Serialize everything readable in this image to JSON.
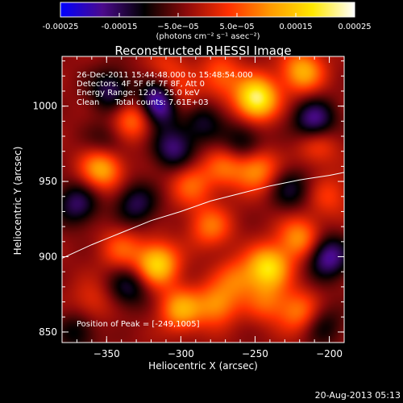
{
  "chart_data": {
    "type": "heatmap",
    "title": "Reconstructed RHESSI Image",
    "xlabel": "Heliocentric X (arcsec)",
    "ylabel": "Heliocentric Y (arcsec)",
    "xlim": [
      -380,
      -190
    ],
    "ylim": [
      843,
      1033
    ],
    "x_ticks": [
      -350,
      -300,
      -250,
      -200
    ],
    "x_tick_labels": [
      "−350",
      "−300",
      "−250",
      "−200"
    ],
    "y_ticks": [
      850,
      900,
      950,
      1000
    ],
    "y_tick_labels": [
      "850",
      "900",
      "950",
      "1000"
    ],
    "grid": false,
    "legend": "none",
    "annotations": [
      "26-Dec-2011 15:44:48.000 to 15:48:54.000",
      "Detectors: 4F 5F 6F 7F 8F, Att 0",
      "Energy Range: 12.0 - 25.0 keV",
      "Clean      Total counts: 7.61E+03",
      "Position of Peak = [-249,1005]"
    ],
    "peak": [
      -249,
      1005
    ],
    "colorbar": {
      "range": [
        -0.00025,
        0.00025
      ],
      "tick_values": [
        -0.00025,
        -0.00015,
        -5e-05,
        5e-05,
        0.00015,
        0.00025
      ],
      "tick_labels": [
        "-0.00025",
        "-0.00015",
        "−5.0e−05",
        "5.0e−05",
        "0.00015",
        "0.00025"
      ],
      "unit_label": "(photons cm⁻² s⁻¹ asec⁻²)",
      "colors": [
        "#0000ff",
        "#4b0a8c",
        "#000000",
        "#8c0a0a",
        "#ff3000",
        "#ff9a00",
        "#ffe800",
        "#ffffff"
      ]
    },
    "limb_curve": [
      [
        -380,
        899
      ],
      [
        -360,
        908
      ],
      [
        -340,
        916
      ],
      [
        -320,
        924
      ],
      [
        -300,
        930
      ],
      [
        -280,
        937
      ],
      [
        -260,
        942
      ],
      [
        -240,
        947
      ],
      [
        -220,
        951
      ],
      [
        -200,
        954
      ],
      [
        -190,
        956
      ]
    ],
    "sources": [
      {
        "x": -249,
        "y": 1005,
        "value": 0.00025
      },
      {
        "x": -316,
        "y": 895,
        "value": 0.0002
      },
      {
        "x": -241,
        "y": 893,
        "value": 0.0002
      },
      {
        "x": -353,
        "y": 959,
        "value": 0.00017
      },
      {
        "x": -332,
        "y": 992,
        "value": 0.00013
      },
      {
        "x": -303,
        "y": 1005,
        "value": 0.00012
      },
      {
        "x": -273,
        "y": 1020,
        "value": 0.0001
      },
      {
        "x": -218,
        "y": 1023,
        "value": 0.00016
      },
      {
        "x": -293,
        "y": 948,
        "value": 0.0001
      },
      {
        "x": -249,
        "y": 958,
        "value": 0.00014
      },
      {
        "x": -270,
        "y": 960,
        "value": 0.0001
      },
      {
        "x": -208,
        "y": 975,
        "value": 9e-05
      },
      {
        "x": -220,
        "y": 912,
        "value": 0.00014
      },
      {
        "x": -280,
        "y": 920,
        "value": 0.00011
      },
      {
        "x": -340,
        "y": 905,
        "value": 9e-05
      },
      {
        "x": -300,
        "y": 865,
        "value": 0.00015
      },
      {
        "x": -276,
        "y": 868,
        "value": 0.00013
      },
      {
        "x": -262,
        "y": 885,
        "value": 0.0001
      },
      {
        "x": -220,
        "y": 863,
        "value": 0.00012
      },
      {
        "x": -242,
        "y": 870,
        "value": 9e-05
      },
      {
        "x": -360,
        "y": 870,
        "value": 6e-05
      },
      {
        "x": -200,
        "y": 940,
        "value": 7e-05
      },
      {
        "x": -310,
        "y": 1025,
        "value": 6e-05
      },
      {
        "x": -314,
        "y": 1002,
        "value": -0.00025
      },
      {
        "x": -347,
        "y": 1010,
        "value": -0.00012
      },
      {
        "x": -210,
        "y": 990,
        "value": -0.00016
      },
      {
        "x": -305,
        "y": 972,
        "value": -0.00013
      },
      {
        "x": -258,
        "y": 975,
        "value": -0.0001
      },
      {
        "x": -370,
        "y": 935,
        "value": -0.00012
      },
      {
        "x": -330,
        "y": 935,
        "value": -0.00011
      },
      {
        "x": -201,
        "y": 900,
        "value": -0.00016
      },
      {
        "x": -226,
        "y": 945,
        "value": -9e-05
      },
      {
        "x": -335,
        "y": 880,
        "value": -0.0001
      },
      {
        "x": -370,
        "y": 850,
        "value": -8e-05
      },
      {
        "x": -205,
        "y": 855,
        "value": -8e-05
      },
      {
        "x": -285,
        "y": 990,
        "value": -9e-05
      },
      {
        "x": -350,
        "y": 975,
        "value": -7e-05
      }
    ]
  },
  "footer": {
    "timestamp": "20-Aug-2013 05:13"
  }
}
